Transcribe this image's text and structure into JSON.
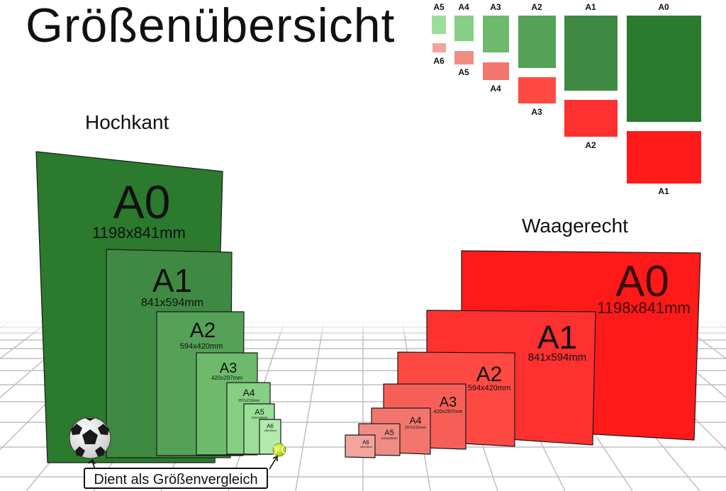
{
  "title": "Größenübersicht",
  "portrait_label": "Hochkant",
  "landscape_label": "Waagerecht",
  "comparison_note": "Dient als Größenvergleich",
  "overview": {
    "green_labels": [
      "A5",
      "A4",
      "A3",
      "A2",
      "A1",
      "A0"
    ],
    "red_labels": [
      "A6",
      "A5",
      "A4",
      "A3",
      "A2",
      "A1"
    ]
  },
  "portrait_sheets": [
    {
      "name": "A0",
      "dims": "1198x841mm"
    },
    {
      "name": "A1",
      "dims": "841x594mm"
    },
    {
      "name": "A2",
      "dims": "594x420mm"
    },
    {
      "name": "A3",
      "dims": "420x297mm"
    },
    {
      "name": "A4",
      "dims": "297x210mm"
    },
    {
      "name": "A5",
      "dims": "210x148mm"
    },
    {
      "name": "A6",
      "dims": "148x105mm"
    }
  ],
  "landscape_sheets": [
    {
      "name": "A0",
      "dims": "1198x841mm"
    },
    {
      "name": "A1",
      "dims": "841x594mm"
    },
    {
      "name": "A2",
      "dims": "594x420mm"
    },
    {
      "name": "A3",
      "dims": "420x297mm"
    },
    {
      "name": "A4",
      "dims": "297x210mm"
    },
    {
      "name": "A5",
      "dims": "210x148mm"
    },
    {
      "name": "A6",
      "dims": "148x105mm"
    }
  ],
  "colors": {
    "green_dark": "#2b7a2e",
    "green_a1": "#3f8a42",
    "green_a2": "#55a157",
    "green_a3": "#6dba6c",
    "green_a4": "#86cf84",
    "green_a5": "#9ade97",
    "green_a6": "#b2eab0",
    "red_a0": "#ff1a1a",
    "red_a1": "#ff3030",
    "red_a2": "#fe4a43",
    "red_a3": "#f65f58",
    "red_a4": "#f3766e",
    "red_a5": "#f18c85",
    "red_a6": "#f2a49f",
    "grid": "#bfbfbf"
  }
}
